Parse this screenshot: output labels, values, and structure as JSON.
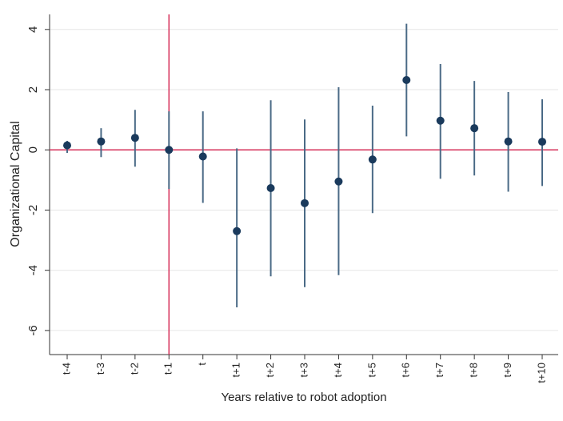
{
  "chart_data": {
    "type": "errorbar",
    "x_label": "Years relative to robot adoption",
    "y_label": "Organizational Capital",
    "categories": [
      "t-4",
      "t-3",
      "t-2",
      "t-1",
      "t",
      "t+1",
      "t+2",
      "t+3",
      "t+4",
      "t+5",
      "t+6",
      "t+7",
      "t+8",
      "t+9",
      "t+10"
    ],
    "values": [
      0.15,
      0.28,
      0.4,
      0,
      -0.22,
      -2.7,
      -1.27,
      -1.77,
      -1.05,
      -0.32,
      2.32,
      0.97,
      0.72,
      0.28,
      0.27
    ],
    "lower": [
      -0.1,
      -0.24,
      -0.56,
      -1.3,
      -1.76,
      -5.23,
      -4.2,
      -4.56,
      -4.16,
      -2.1,
      0.45,
      -0.96,
      -0.85,
      -1.39,
      -1.2
    ],
    "upper": [
      0.3,
      0.72,
      1.33,
      1.28,
      1.28,
      0.05,
      1.65,
      1.01,
      2.08,
      1.47,
      4.19,
      2.85,
      2.29,
      1.92,
      1.68
    ],
    "color": "#1a3a5c",
    "bar_color": "#4a6a86",
    "reference_lines": {
      "x": "t-1",
      "y": 0,
      "color": "#d6305a"
    },
    "ylim": [
      -6.8,
      4.5
    ],
    "yticks": [
      -6,
      -4,
      -2,
      0,
      2,
      4
    ],
    "grid": true
  }
}
